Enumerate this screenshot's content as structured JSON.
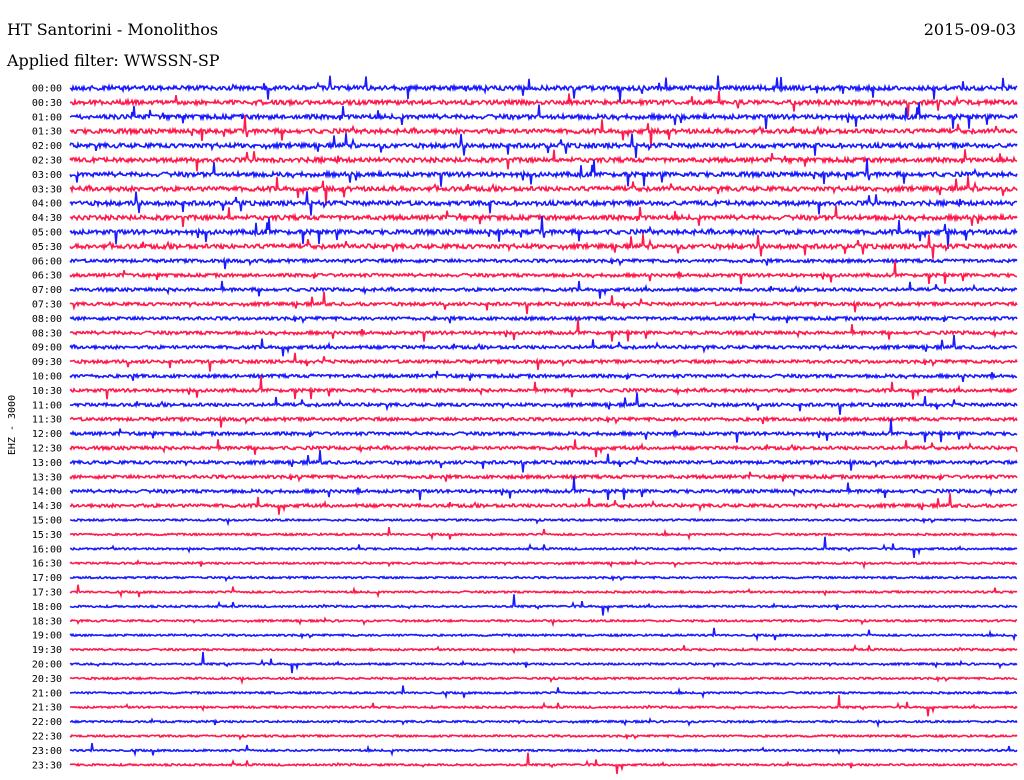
{
  "header": {
    "title": "HT Santorini - Monolithos",
    "date": "2015-09-03",
    "filter": "Applied filter: WWSSN-SP"
  },
  "chart_data": {
    "type": "line",
    "title": "HT Santorini - Monolithos",
    "subtitle": "Applied filter: WWSSN-SP",
    "ylabel": "EHZ - 3000",
    "xlabel": "",
    "grid": false,
    "colors": {
      "even": "#1a1aff",
      "odd": "#ff1a4d"
    },
    "trace_times": [
      "00:00",
      "00:30",
      "01:00",
      "01:30",
      "02:00",
      "02:30",
      "03:00",
      "03:30",
      "04:00",
      "04:30",
      "05:00",
      "05:30",
      "06:00",
      "06:30",
      "07:00",
      "07:30",
      "08:00",
      "08:30",
      "09:00",
      "09:30",
      "10:00",
      "10:30",
      "11:00",
      "11:30",
      "12:00",
      "12:30",
      "13:00",
      "13:30",
      "14:00",
      "14:30",
      "15:00",
      "15:30",
      "16:00",
      "16:30",
      "17:00",
      "17:30",
      "18:00",
      "18:30",
      "19:00",
      "19:30",
      "20:00",
      "20:30",
      "21:00",
      "21:30",
      "22:00",
      "22:30",
      "23:00",
      "23:30"
    ]
  }
}
